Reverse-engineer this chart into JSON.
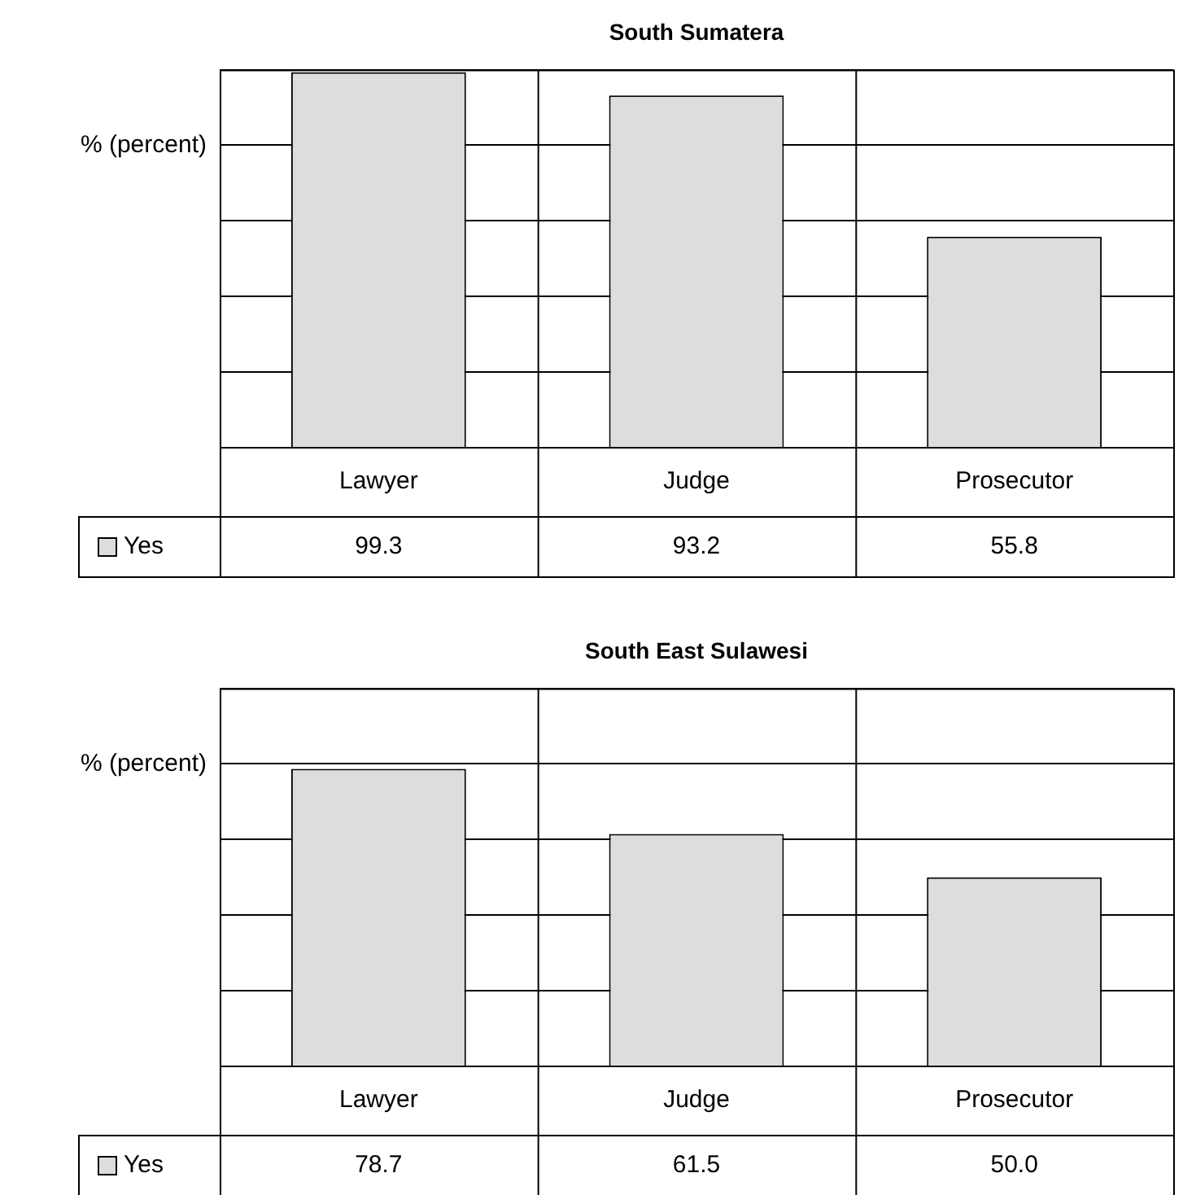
{
  "chart_data": [
    {
      "type": "bar",
      "title": "South Sumatera",
      "ylabel": "% (percent)",
      "categories": [
        "Lawyer",
        "Judge",
        "Prosecutor"
      ],
      "series": [
        {
          "name": "Yes",
          "color": "#dddddd",
          "values": [
            99.3,
            93.2,
            55.8
          ],
          "value_labels": [
            "99.3",
            "93.2",
            "55.8"
          ]
        }
      ],
      "ylim": [
        0,
        100
      ],
      "grid": true
    },
    {
      "type": "bar",
      "title": "South East Sulawesi",
      "ylabel": "% (percent)",
      "categories": [
        "Lawyer",
        "Judge",
        "Prosecutor"
      ],
      "series": [
        {
          "name": "Yes",
          "color": "#dddddd",
          "values": [
            78.7,
            61.5,
            50.0
          ],
          "value_labels": [
            "78.7",
            "61.5",
            "50.0"
          ]
        }
      ],
      "ylim": [
        0,
        100
      ],
      "grid": true
    }
  ]
}
